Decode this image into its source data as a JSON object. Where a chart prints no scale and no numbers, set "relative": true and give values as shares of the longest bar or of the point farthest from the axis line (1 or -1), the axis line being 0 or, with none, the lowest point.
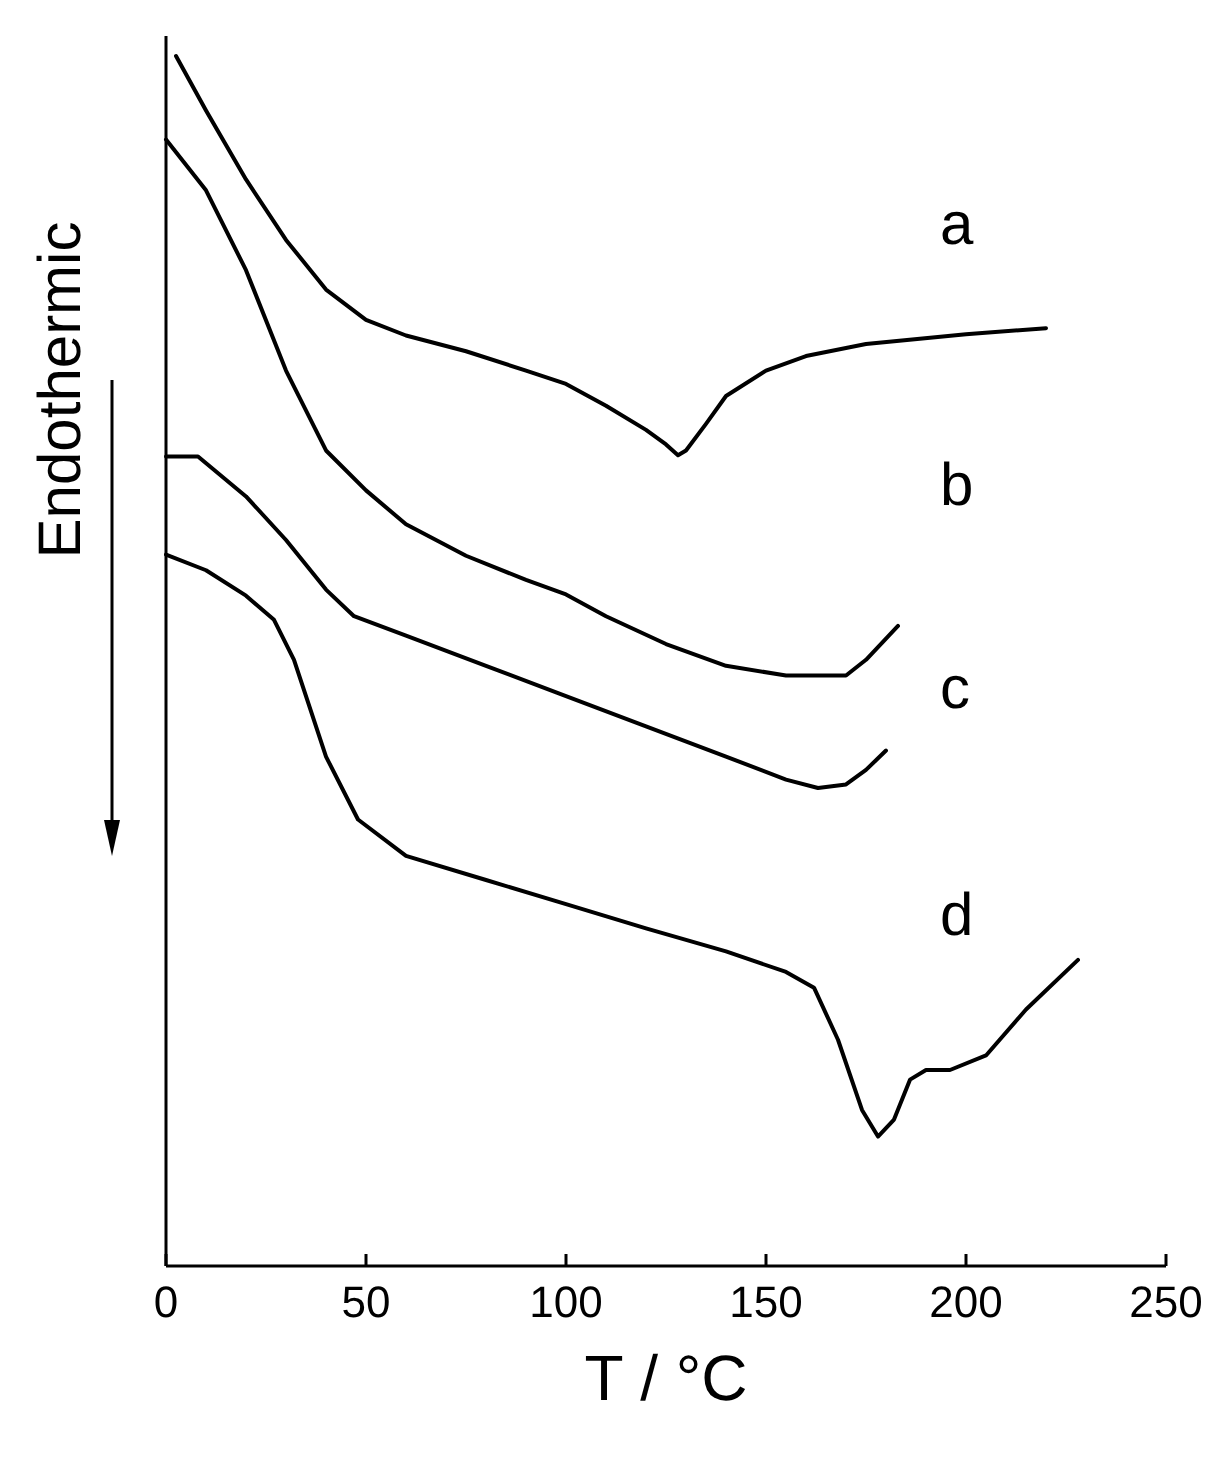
{
  "chart_data": {
    "type": "line",
    "relative": true,
    "xlabel": "T / °C",
    "ylabel": "Endothermic",
    "xlim": [
      0,
      250
    ],
    "xticks": [
      0,
      50,
      100,
      150,
      200,
      250
    ],
    "tick_labels": "x",
    "series": [
      {
        "name": "a",
        "color": "#000000",
        "x": [
          2.5,
          10,
          20,
          30,
          40,
          50,
          60,
          75,
          90,
          100,
          110,
          120,
          125,
          128,
          130,
          135,
          140,
          150,
          160,
          175,
          200,
          220
        ],
        "values": [
          1.0,
          0.955,
          0.898,
          0.848,
          0.807,
          0.782,
          0.769,
          0.756,
          0.74,
          0.729,
          0.711,
          0.691,
          0.679,
          0.67,
          0.674,
          0.696,
          0.719,
          0.74,
          0.752,
          0.762,
          0.77,
          0.775
        ]
      },
      {
        "name": "b",
        "color": "#000000",
        "x": [
          0,
          10,
          20,
          30,
          40,
          50,
          60,
          75,
          90,
          100,
          110,
          125,
          140,
          155,
          170,
          175,
          183
        ],
        "values": [
          0.931,
          0.889,
          0.823,
          0.74,
          0.674,
          0.641,
          0.613,
          0.587,
          0.567,
          0.555,
          0.537,
          0.514,
          0.496,
          0.488,
          0.488,
          0.501,
          0.529
        ]
      },
      {
        "name": "c",
        "color": "#000000",
        "x": [
          0,
          8,
          20,
          30,
          40,
          47,
          60,
          80,
          100,
          120,
          140,
          155,
          163,
          170,
          175,
          180
        ],
        "values": [
          0.669,
          0.669,
          0.636,
          0.6,
          0.559,
          0.537,
          0.521,
          0.496,
          0.471,
          0.446,
          0.421,
          0.402,
          0.395,
          0.398,
          0.41,
          0.426
        ]
      },
      {
        "name": "d",
        "color": "#000000",
        "x": [
          0,
          10,
          20,
          27,
          32,
          40,
          48,
          60,
          80,
          100,
          120,
          140,
          155,
          162,
          168,
          174,
          178,
          182,
          186,
          190,
          196,
          205,
          215,
          228
        ],
        "values": [
          0.588,
          0.575,
          0.554,
          0.534,
          0.501,
          0.421,
          0.369,
          0.339,
          0.319,
          0.299,
          0.279,
          0.26,
          0.243,
          0.23,
          0.187,
          0.129,
          0.107,
          0.121,
          0.154,
          0.162,
          0.162,
          0.174,
          0.212,
          0.253
        ]
      }
    ]
  }
}
